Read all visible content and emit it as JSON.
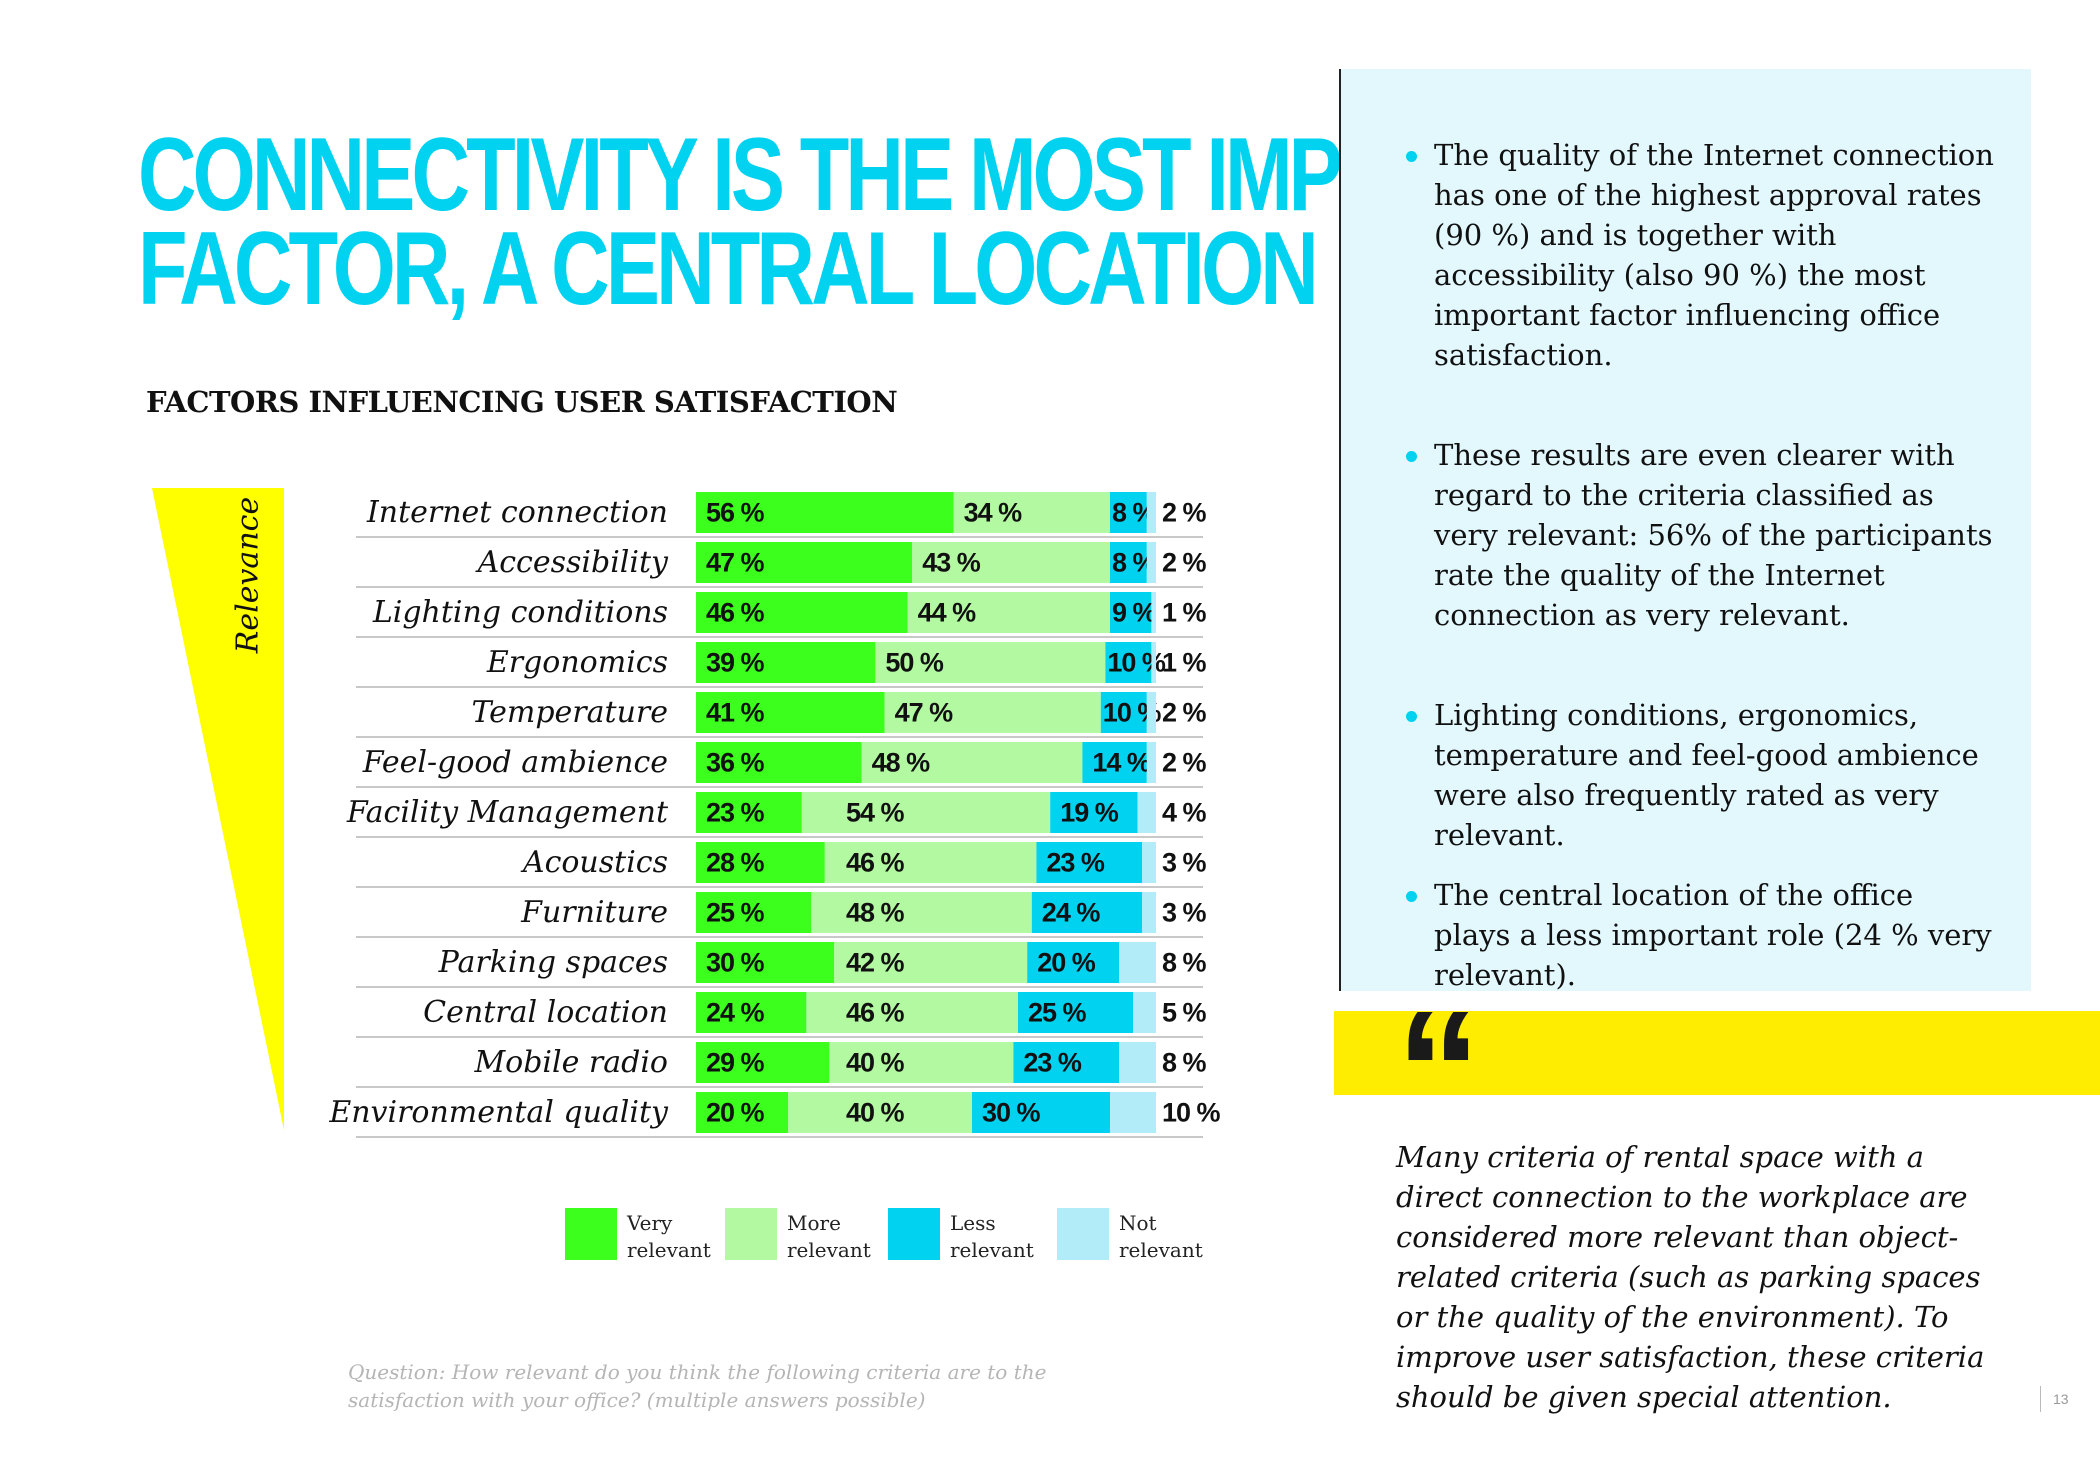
{
  "headline": {
    "line1": "CONNECTIVITY IS THE MOST IMPORTANT",
    "line2": "FACTOR, A CENTRAL LOCATION LESS"
  },
  "chart_data": {
    "type": "bar",
    "stacked": true,
    "orientation": "horizontal",
    "title": "FACTORS INFLUENCING USER SATISFACTION",
    "axis_label": "Relevance",
    "categories": [
      "Internet connection",
      "Accessibility",
      "Lighting conditions",
      "Ergonomics",
      "Temperature",
      "Feel-good ambience",
      "Facility Management",
      "Acoustics",
      "Furniture",
      "Parking spaces",
      "Central location",
      "Mobile radio",
      "Environmental quality"
    ],
    "series": [
      {
        "name": "Very relevant",
        "color": "#3cff1e",
        "values": [
          56,
          47,
          46,
          39,
          41,
          36,
          23,
          28,
          25,
          30,
          24,
          29,
          20
        ]
      },
      {
        "name": "More relevant",
        "color": "#b3f9a1",
        "values": [
          34,
          43,
          44,
          50,
          47,
          48,
          54,
          46,
          48,
          42,
          46,
          40,
          40
        ]
      },
      {
        "name": "Less relevant",
        "color": "#00d2f0",
        "values": [
          8,
          8,
          9,
          10,
          10,
          14,
          19,
          23,
          24,
          20,
          25,
          23,
          30
        ]
      },
      {
        "name": "Not relevant",
        "color": "#b3ecf9",
        "values": [
          2,
          2,
          1,
          1,
          2,
          2,
          4,
          3,
          3,
          8,
          5,
          8,
          10
        ]
      }
    ],
    "value_suffix": " %",
    "legend": [
      {
        "line1": "Very",
        "line2": "relevant"
      },
      {
        "line1": "More",
        "line2": "relevant"
      },
      {
        "line1": "Less",
        "line2": "relevant"
      },
      {
        "line1": "Not",
        "line2": "relevant"
      }
    ],
    "legend_position": "bottom"
  },
  "question": "Question: How relevant do you think the following criteria are to the satisfaction with your office? (multiple answers possible)",
  "bullets": [
    "The quality of the Internet connection has one of the highest approval rates (90 %) and is together with accessibility (also 90 %) the most important factor influencing office satisfaction.",
    "These results are even clearer with regard to the criteria classified as very relevant: 56% of the participants rate the quality of the Internet connection as very relevant.",
    "Lighting conditions, ergonomics, temperature and feel-good ambience were also frequently rated as very relevant.",
    "The central location of the office plays a less important role (24 % very relevant)."
  ],
  "quote": {
    "mark": "“",
    "text": "Many criteria of rental space with a direct connection to the workplace are considered more relevant than object-related criteria (such as parking spaces or the quality of the environment). To improve user satisfaction, these criteria should be given special attention."
  },
  "page_number": "13",
  "colors": {
    "accent": "#00d2f0",
    "panel": "#e3f8fd",
    "yellow": "#ffed00"
  }
}
